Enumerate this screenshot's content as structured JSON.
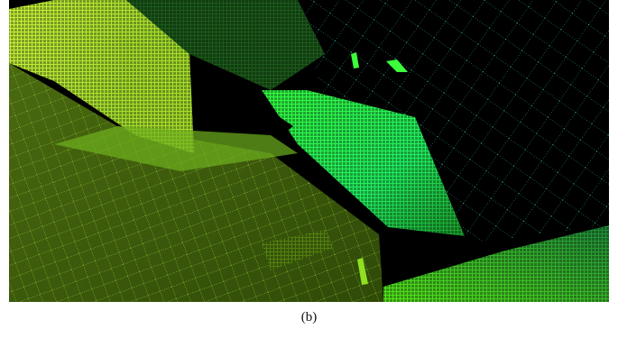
{
  "caption": "(b)"
}
